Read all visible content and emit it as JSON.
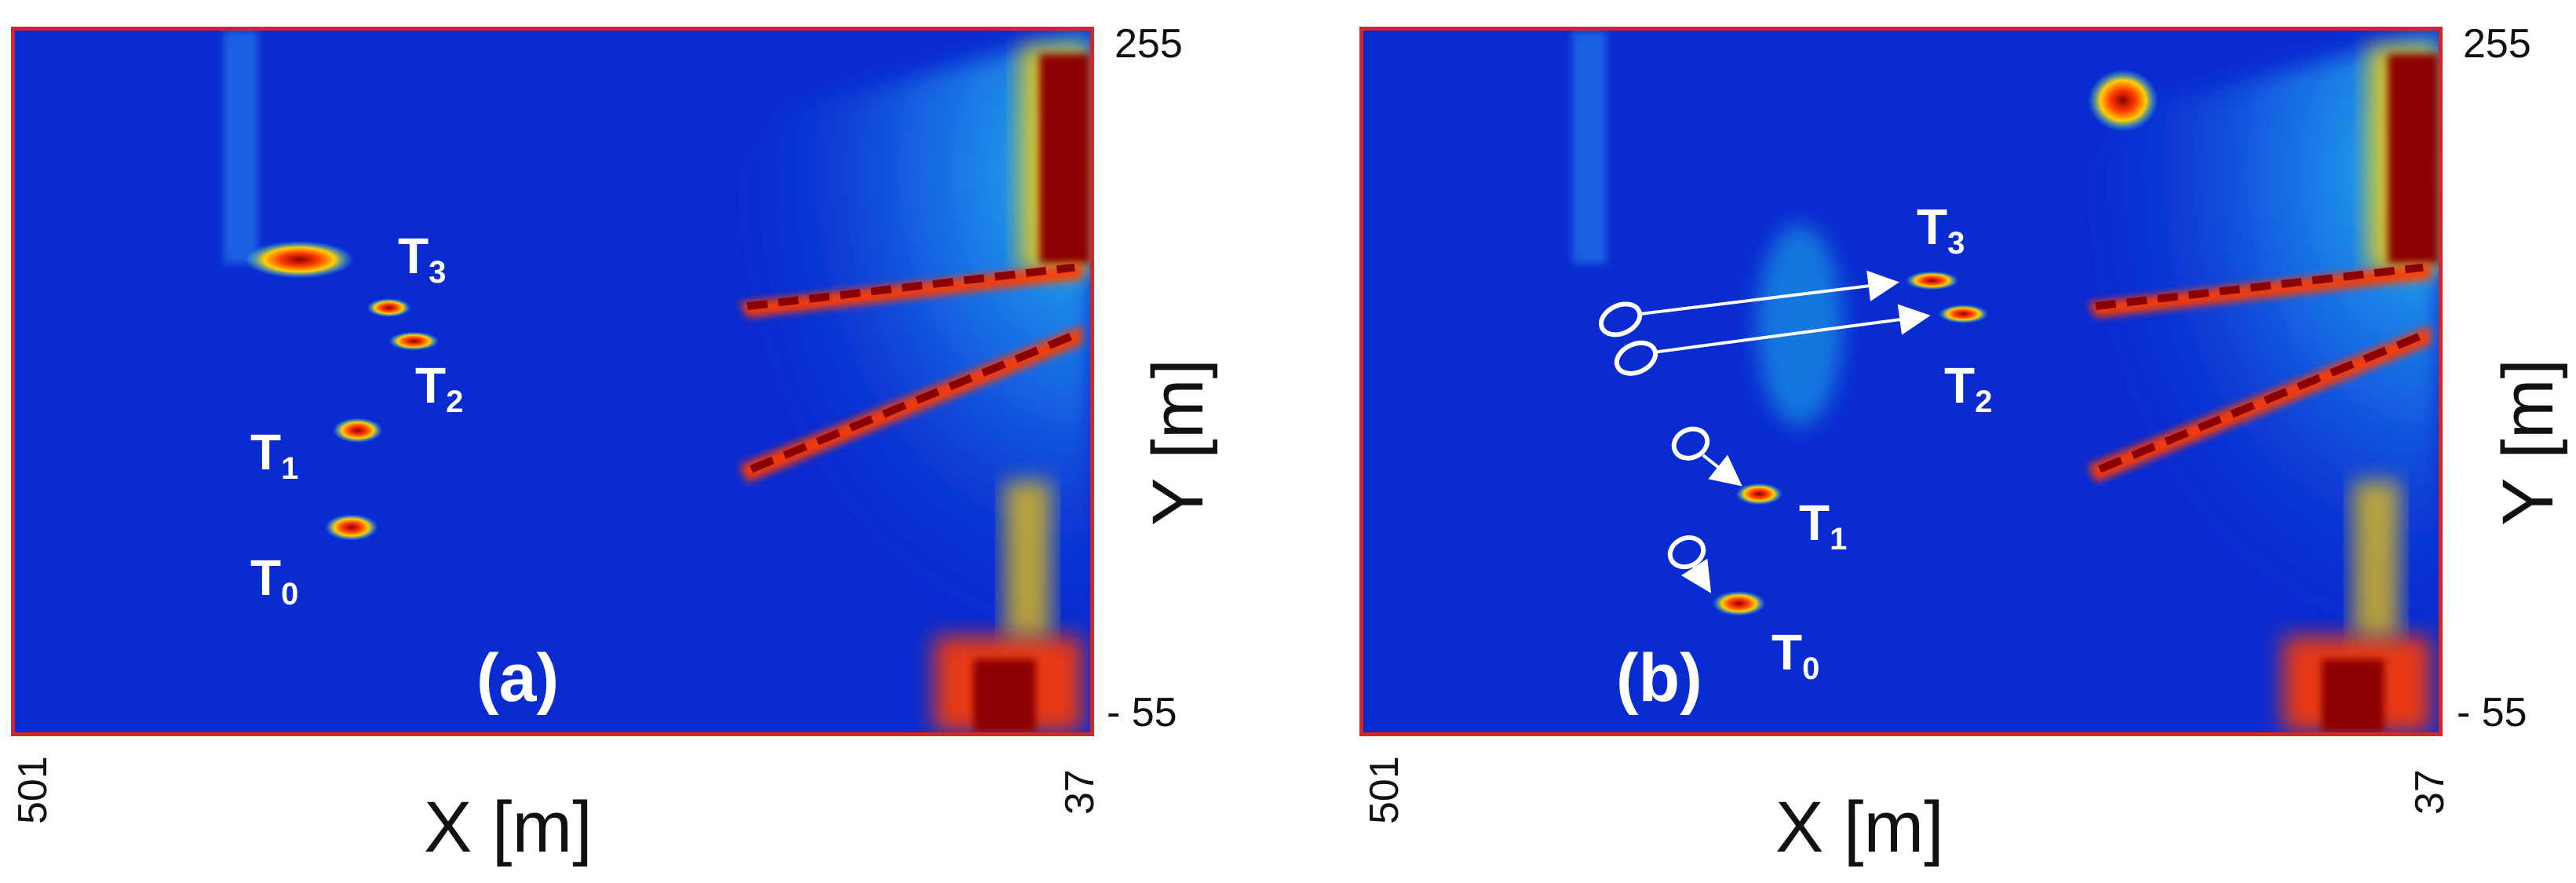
{
  "panel_a": {
    "letter": "(a)",
    "targets": [
      {
        "base": "T",
        "sub": "3"
      },
      {
        "base": "T",
        "sub": "2"
      },
      {
        "base": "T",
        "sub": "1"
      },
      {
        "base": "T",
        "sub": "0"
      }
    ]
  },
  "panel_b": {
    "letter": "(b)",
    "targets": [
      {
        "base": "T",
        "sub": "3"
      },
      {
        "base": "T",
        "sub": "2"
      },
      {
        "base": "T",
        "sub": "1"
      },
      {
        "base": "T",
        "sub": "0"
      }
    ]
  },
  "axes": {
    "x_label": "X [m]",
    "y_label": "Y [m]",
    "x_left_tick": "501",
    "x_right_tick": "37",
    "y_top_tick": "255",
    "y_bottom_tick": "- 55"
  },
  "colors": {
    "background": "#0a2bd0",
    "frame": "#cc2a2a",
    "hot": "#8b0000",
    "warm": "#ffd000",
    "cool": "#22d4f0",
    "marker": "#ffffff"
  }
}
